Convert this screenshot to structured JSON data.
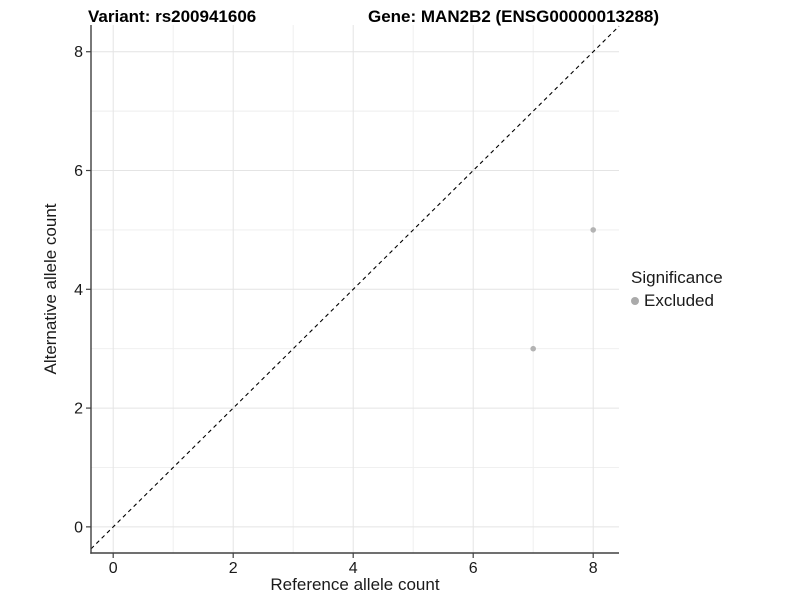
{
  "chart_data": {
    "type": "scatter",
    "title_variant": "Variant: rs200941606",
    "title_gene": "Gene: MAN2B2 (ENSG00000013288)",
    "xlabel": "Reference allele count",
    "ylabel": "Alternative allele count",
    "xlim": [
      -0.37,
      8.43
    ],
    "ylim": [
      -0.44,
      8.45
    ],
    "x_major_ticks": [
      0,
      2,
      4,
      6,
      8
    ],
    "y_major_ticks": [
      0,
      2,
      4,
      6,
      8
    ],
    "x_minor_ticks": [
      1,
      3,
      5,
      7
    ],
    "y_minor_ticks": [
      1,
      3,
      5,
      7
    ],
    "grid": true,
    "series": [
      {
        "name": "Excluded",
        "points": [
          {
            "x": 7,
            "y": 3
          },
          {
            "x": 8,
            "y": 5
          }
        ]
      }
    ],
    "identity_line": {
      "slope": 1,
      "intercept": 0,
      "linetype": "dashed"
    },
    "legend": {
      "position": "right",
      "title": "Significance",
      "items": [
        {
          "label": "Excluded",
          "color": "#aaaaaa"
        }
      ]
    },
    "colors": {
      "point": "#b3b3b3",
      "grid_major": "#e4e4e4",
      "grid_minor": "#eeeeee",
      "axis_line": "#404040",
      "tick_mark": "#404040",
      "tick_label": "#1a1a1a",
      "identity_line": "#000000",
      "background": "#ffffff"
    }
  }
}
